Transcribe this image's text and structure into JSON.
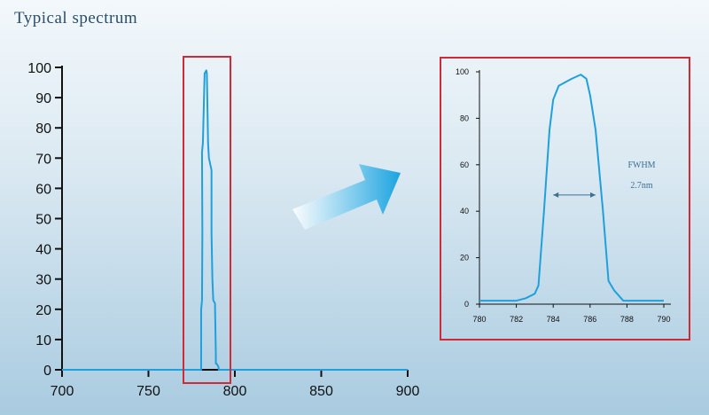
{
  "title": "Typical spectrum",
  "colors": {
    "curve": "#1fa0dc",
    "highlight_box": "#d02a36",
    "arrow": "#1aa3e0"
  },
  "chart_data": [
    {
      "type": "line",
      "xlim": [
        700,
        900
      ],
      "ylim": [
        0,
        100
      ],
      "xticks": [
        "700",
        "750",
        "800",
        "850",
        "900"
      ],
      "yticks": [
        "0",
        "10",
        "20",
        "30",
        "40",
        "50",
        "60",
        "70",
        "80",
        "90",
        "100"
      ],
      "highlight_range_x": [
        772,
        799
      ],
      "series": [
        {
          "x": [
            700,
            780.5,
            780.5,
            781,
            781.2,
            781,
            781.5,
            782.5,
            783.5,
            783.8,
            784.5,
            785,
            786.5,
            786.5,
            787,
            787.5,
            788.5,
            789,
            789,
            789.5,
            790.5,
            790.7,
            791,
            900
          ],
          "y": [
            0,
            0,
            20,
            23,
            45,
            72,
            75,
            98,
            99,
            98,
            75,
            70,
            66,
            45,
            30,
            23,
            22,
            5,
            2,
            2,
            1,
            0,
            0,
            0
          ]
        }
      ],
      "grid": false
    },
    {
      "type": "line",
      "xlim": [
        780,
        790
      ],
      "ylim": [
        0,
        100
      ],
      "xticks": [
        "780",
        "782",
        "784",
        "786",
        "788",
        "790"
      ],
      "yticks": [
        "0",
        "20",
        "40",
        "60",
        "80",
        "100"
      ],
      "series": [
        {
          "x": [
            780,
            782,
            782.5,
            783,
            783.2,
            783.5,
            783.8,
            784,
            784.3,
            785,
            785.5,
            785.8,
            786,
            786.3,
            786.7,
            787,
            787.3,
            787.8,
            790
          ],
          "y": [
            1.5,
            1.5,
            2.5,
            4.5,
            8,
            40,
            75,
            88,
            94,
            97,
            98.8,
            97,
            90,
            75,
            40,
            10,
            6,
            1.5,
            1.5
          ]
        }
      ],
      "annotations": {
        "label": "FWHM",
        "value": "2.7nm",
        "arrow_x": [
          784,
          786.3
        ],
        "arrow_y": 47
      },
      "grid": false
    }
  ]
}
